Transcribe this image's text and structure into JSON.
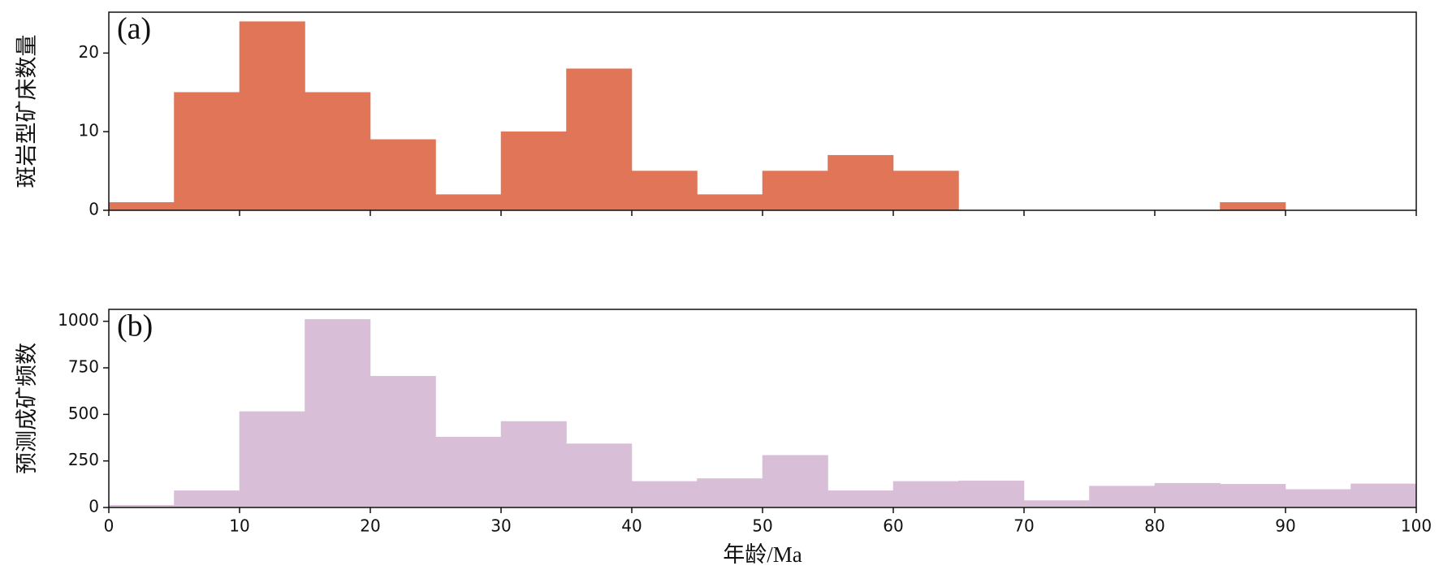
{
  "chart_data": [
    {
      "type": "histogram",
      "annotation": "(a)",
      "ylabel": "斑岩型矿床数量",
      "color": "#e07558",
      "bins": [
        0,
        5,
        10,
        15,
        20,
        25,
        30,
        35,
        40,
        45,
        50,
        55,
        60,
        65,
        70,
        75,
        80,
        85,
        90,
        95,
        100
      ],
      "values": [
        1,
        15,
        24,
        15,
        9,
        2,
        10,
        18,
        5,
        2,
        5,
        7,
        5,
        0,
        0,
        0,
        0,
        1,
        0,
        0
      ],
      "xlim": [
        0,
        100
      ],
      "ylim": [
        0,
        25.2
      ],
      "yticks": [
        0,
        10,
        20
      ]
    },
    {
      "type": "histogram",
      "annotation": "(b)",
      "ylabel": "预测成矿频数",
      "xlabel": "年龄/Ma",
      "color": "#d9bed7",
      "bins": [
        0,
        5,
        10,
        15,
        20,
        25,
        30,
        35,
        40,
        45,
        50,
        55,
        60,
        65,
        70,
        75,
        80,
        85,
        90,
        95,
        100
      ],
      "values": [
        12,
        90,
        515,
        1010,
        705,
        378,
        462,
        342,
        140,
        155,
        280,
        90,
        140,
        143,
        37,
        115,
        130,
        125,
        97,
        127
      ],
      "xlim": [
        0,
        100
      ],
      "ylim": [
        0,
        1064
      ],
      "yticks": [
        0,
        250,
        500,
        750,
        1000
      ],
      "xticks": [
        0,
        10,
        20,
        30,
        40,
        50,
        60,
        70,
        80,
        90,
        100
      ]
    }
  ]
}
